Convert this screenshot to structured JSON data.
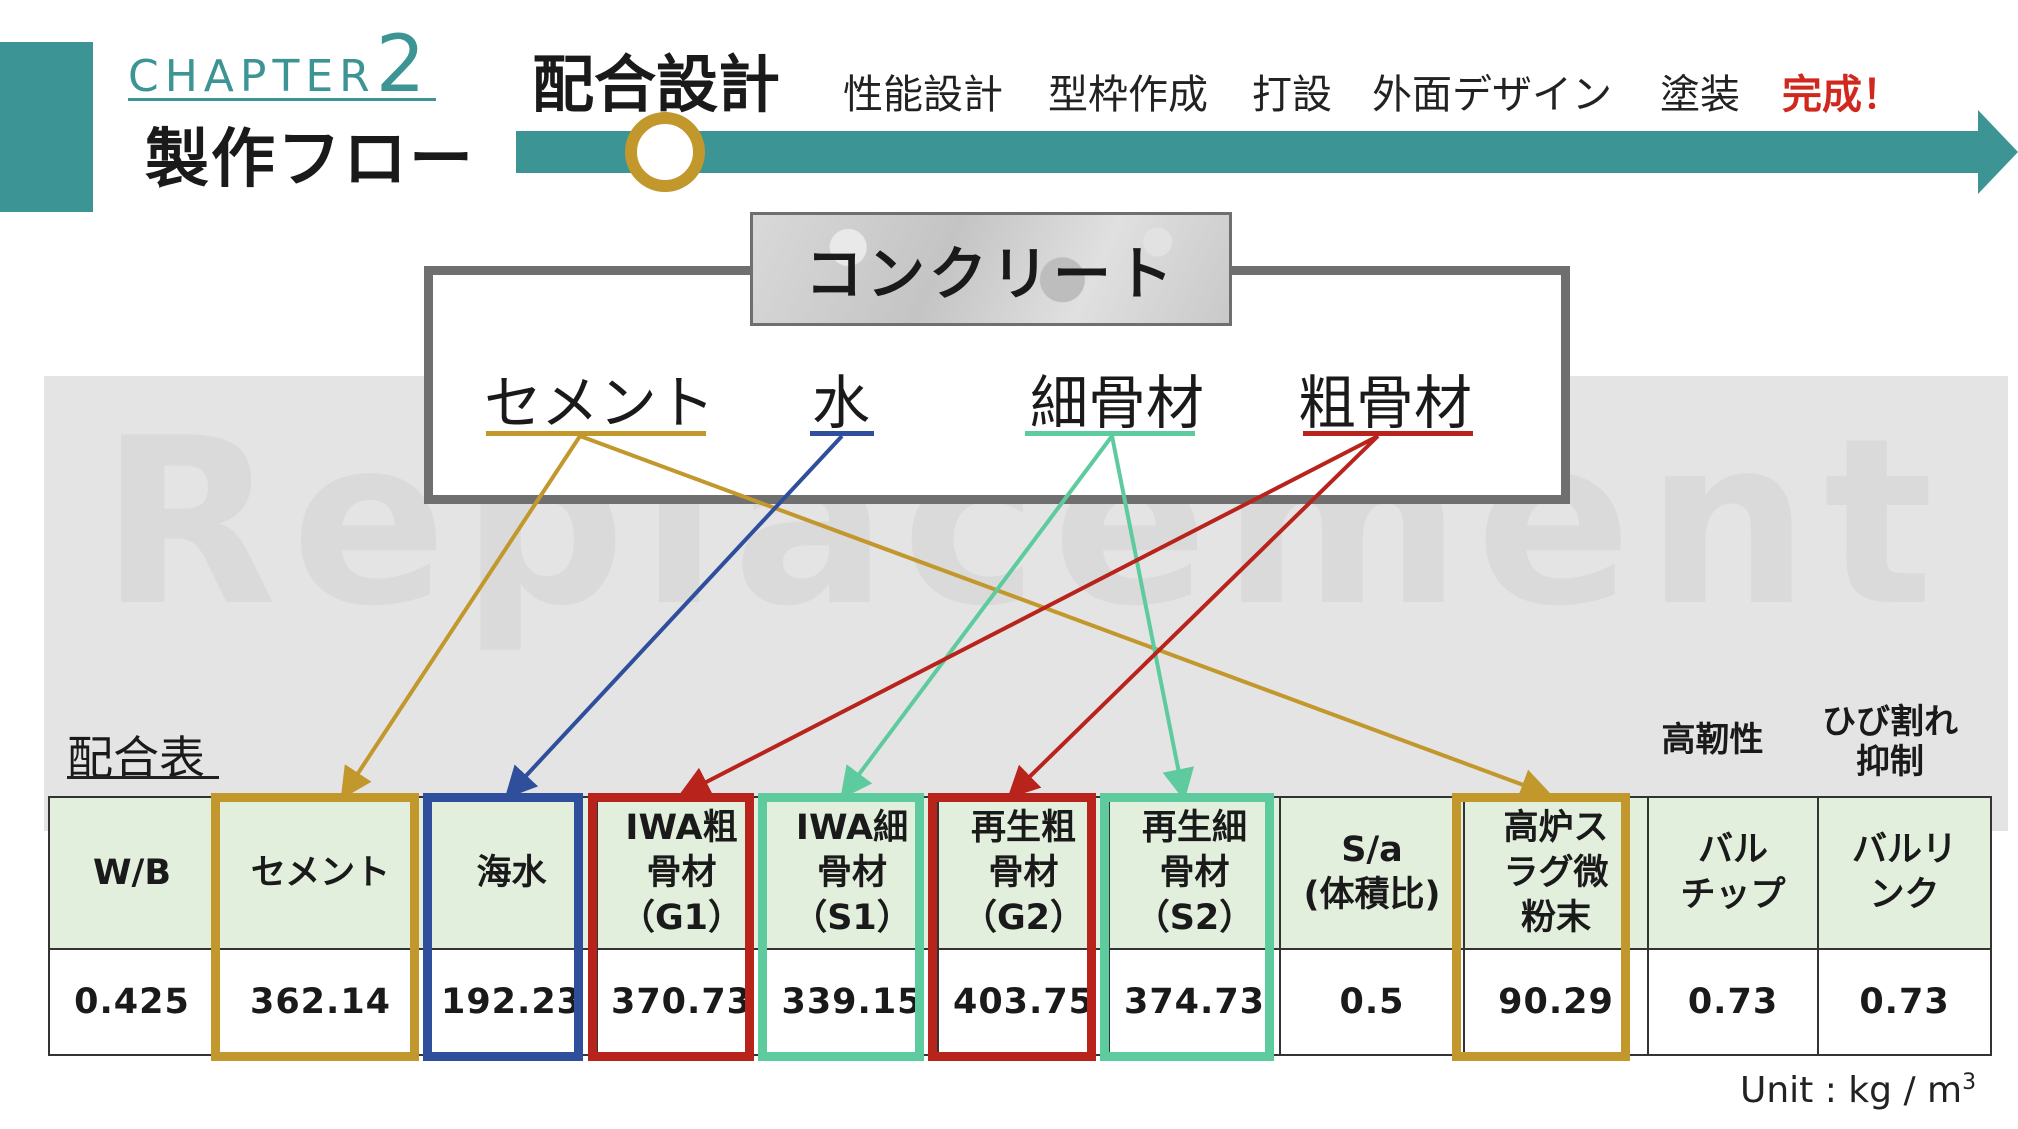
{
  "header": {
    "chapter_word": "CHAPTER",
    "chapter_number": "2",
    "flow_title": "製作フロー",
    "current_step": "配合設計",
    "steps": [
      "性能設計",
      "型枠作成",
      "打設",
      "外面デザイン",
      "塗装"
    ],
    "done_step": "完成！"
  },
  "watermark": "Replacement",
  "diagram": {
    "concrete_label": "コンクリート",
    "materials": [
      {
        "label": "セメント",
        "color": "#c2972c"
      },
      {
        "label": "水",
        "color": "#2f4f9c"
      },
      {
        "label": "細骨材",
        "color": "#5ecb9f"
      },
      {
        "label": "粗骨材",
        "color": "#b8231c"
      }
    ]
  },
  "table": {
    "title": "配合表",
    "extra_labels": [
      "高靭性",
      "ひび割れ\n抑制"
    ],
    "headers": [
      "W/B",
      "セメント",
      "海水",
      "IWA粗\n骨材\n（G1）",
      "IWA細\n骨材\n（S1）",
      "再生粗\n骨材\n（G2）",
      "再生細\n骨材\n（S2）",
      "S/a\n(体積比)",
      "高炉ス\nラグ微\n粉末",
      "バル\nチップ",
      "バルリ\nンク"
    ],
    "values": [
      "0.425",
      "362.14",
      "192.23",
      "370.73",
      "339.15",
      "403.75",
      "374.73",
      "0.5",
      "90.29",
      "0.73",
      "0.73"
    ],
    "unit": "Unit : kg / m",
    "unit_sup": "3"
  },
  "colors": {
    "teal": "#3d9494",
    "gold": "#c2972c",
    "blue": "#2f4f9c",
    "green": "#5ecb9f",
    "red": "#b8231c"
  }
}
